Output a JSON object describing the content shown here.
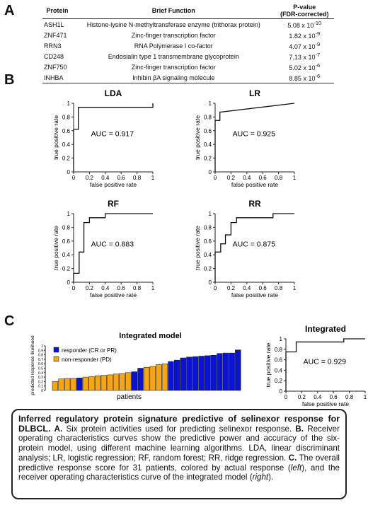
{
  "panels": {
    "a": "A",
    "b": "B",
    "c": "C"
  },
  "table": {
    "headers": {
      "protein": "Protein",
      "function": "Brief Function",
      "pvalue_line1": "P-value",
      "pvalue_line2": "(FDR-corrected)"
    },
    "rows": [
      {
        "protein": "ASH1L",
        "function": "Histone-lysine N-methyltransferase enzyme (trithorax protein)",
        "mant": "5.08 x 10",
        "exp": "-10"
      },
      {
        "protein": "ZNF471",
        "function": "Zinc-finger transcription factor",
        "mant": "1.82 x 10",
        "exp": "-9"
      },
      {
        "protein": "RRN3",
        "function": "RNA Polymerase I co-factor",
        "mant": "4.07 x 10",
        "exp": "-9"
      },
      {
        "protein": "CD248",
        "function": "Endosialin type 1 transmembrane glycoprotein",
        "mant": "7.13 x 10",
        "exp": "-7"
      },
      {
        "protein": "ZNF750",
        "function": "Zinc-finger transcription factor",
        "mant": "5.02 x 10",
        "exp": "-6"
      },
      {
        "protein": "INHBA",
        "function": "Inhibin βA signaling molecule",
        "mant": "8.85 x 10",
        "exp": "-6"
      }
    ]
  },
  "chart_data": [
    {
      "type": "line",
      "title": "LDA",
      "xlabel": "false positive rate",
      "ylabel": "true positive rate",
      "annotation": "AUC = 0.917",
      "xlim": [
        0,
        1
      ],
      "ylim": [
        0,
        1
      ],
      "xticks": [
        "0",
        "0.2",
        "0.4",
        "0.6",
        "0.8",
        "1"
      ],
      "yticks": [
        "0",
        "0.2",
        "0.4",
        "0.6",
        "0.8",
        "1"
      ],
      "x": [
        0,
        0,
        0.06,
        0.06,
        1,
        1
      ],
      "y": [
        0,
        0.62,
        0.62,
        0.94,
        0.94,
        1
      ]
    },
    {
      "type": "line",
      "title": "LR",
      "xlabel": "false positive rate",
      "ylabel": "true positive rate",
      "annotation": "AUC = 0.925",
      "xlim": [
        0,
        1
      ],
      "ylim": [
        0,
        1
      ],
      "xticks": [
        "0",
        "0.2",
        "0.4",
        "0.6",
        "0.8",
        "1"
      ],
      "yticks": [
        "0",
        "0.2",
        "0.4",
        "0.6",
        "0.8",
        "1"
      ],
      "x": [
        0,
        0,
        0.06,
        0.06,
        1
      ],
      "y": [
        0,
        0.75,
        0.75,
        0.87,
        1
      ]
    },
    {
      "type": "line",
      "title": "RF",
      "xlabel": "false positive rate",
      "ylabel": "true positive rate",
      "annotation": "AUC = 0.883",
      "xlim": [
        0,
        1
      ],
      "ylim": [
        0,
        1
      ],
      "xticks": [
        "0",
        "0.2",
        "0.4",
        "0.6",
        "0.8",
        "1"
      ],
      "yticks": [
        "0",
        "0.2",
        "0.4",
        "0.6",
        "0.8",
        "1"
      ],
      "x": [
        0,
        0,
        0.07,
        0.07,
        0.13,
        0.13,
        0.2,
        0.2,
        0.4,
        0.4,
        1,
        1
      ],
      "y": [
        0,
        0.13,
        0.13,
        0.44,
        0.44,
        0.87,
        0.87,
        0.94,
        0.94,
        1,
        1,
        1
      ]
    },
    {
      "type": "line",
      "title": "RR",
      "xlabel": "false positive rate",
      "ylabel": "true positive rate",
      "annotation": "AUC = 0.875",
      "xlim": [
        0,
        1
      ],
      "ylim": [
        0,
        1
      ],
      "xticks": [
        "0",
        "0.2",
        "0.4",
        "0.6",
        "0.8",
        "1"
      ],
      "yticks": [
        "0",
        "0.2",
        "0.4",
        "0.6",
        "0.8",
        "1"
      ],
      "x": [
        0,
        0,
        0.07,
        0.07,
        0.13,
        0.13,
        0.2,
        0.2,
        0.27,
        0.27,
        0.73,
        0.73,
        1,
        1
      ],
      "y": [
        0,
        0.44,
        0.44,
        0.56,
        0.56,
        0.69,
        0.69,
        0.87,
        0.87,
        0.94,
        0.94,
        1,
        1,
        1
      ]
    },
    {
      "type": "bar",
      "title": "Integrated model",
      "xlabel": "patients",
      "ylabel": "predicted response likelihood",
      "ylim": [
        0,
        1
      ],
      "yticks": [
        "0",
        "0.1",
        "0.2",
        "0.3",
        "0.4",
        "0.5",
        "0.6",
        "0.7",
        "0.8",
        "0.9",
        "1"
      ],
      "legend_position": "top-left",
      "series": [
        {
          "name": "responder (CR or PR)",
          "color": "#0a12d6"
        },
        {
          "name": "non-responder (PD)",
          "color": "#f5a614"
        }
      ],
      "values": [
        0.2,
        0.26,
        0.27,
        0.27,
        0.28,
        0.3,
        0.31,
        0.33,
        0.34,
        0.35,
        0.37,
        0.38,
        0.4,
        0.42,
        0.5,
        0.52,
        0.54,
        0.58,
        0.6,
        0.65,
        0.68,
        0.73,
        0.75,
        0.76,
        0.77,
        0.78,
        0.79,
        0.83,
        0.84,
        0.84,
        0.91
      ],
      "classes": [
        "non-responder (PD)",
        "non-responder (PD)",
        "non-responder (PD)",
        "non-responder (PD)",
        "responder (CR or PR)",
        "non-responder (PD)",
        "non-responder (PD)",
        "non-responder (PD)",
        "non-responder (PD)",
        "non-responder (PD)",
        "non-responder (PD)",
        "non-responder (PD)",
        "non-responder (PD)",
        "responder (CR or PR)",
        "responder (CR or PR)",
        "non-responder (PD)",
        "non-responder (PD)",
        "non-responder (PD)",
        "non-responder (PD)",
        "responder (CR or PR)",
        "responder (CR or PR)",
        "responder (CR or PR)",
        "responder (CR or PR)",
        "responder (CR or PR)",
        "responder (CR or PR)",
        "responder (CR or PR)",
        "responder (CR or PR)",
        "responder (CR or PR)",
        "responder (CR or PR)",
        "responder (CR or PR)",
        "responder (CR or PR)"
      ]
    },
    {
      "type": "line",
      "title": "Integrated",
      "xlabel": "false positive rate",
      "ylabel": "true positive rate",
      "annotation": "AUC = 0.929",
      "xlim": [
        0,
        1
      ],
      "ylim": [
        0,
        1
      ],
      "xticks": [
        "0",
        "0.2",
        "0.4",
        "0.6",
        "0.8",
        "1"
      ],
      "yticks": [
        "0",
        "0.2",
        "0.4",
        "0.6",
        "0.8",
        "1"
      ],
      "x": [
        0,
        0,
        0.13,
        0.13,
        0.73,
        0.73,
        1,
        1
      ],
      "y": [
        0,
        0.75,
        0.75,
        0.94,
        0.94,
        1,
        1,
        1
      ]
    }
  ],
  "caption": {
    "title": "Inferred regulatory protein signature predictive of selinexor response for DLBCL.",
    "a_label": "A.",
    "a_text": "Six protein activities used for predicting selinexor response.",
    "b_label": "B.",
    "b_text": "Receiver operating characteristics curves show the predictive power and accuracy of the six-protein model, using different machine learning algorithms. LDA, linear discriminant analysis; LR, logistic regression; RF, random forest; RR, ridge regression.",
    "c_label": "C.",
    "c_text1": "The overall predictive response score for 31 patients, colored by actual response (",
    "left_word": "left",
    "c_text2": "), and the receiver operating characteristics curve of the integrated model (",
    "right_word": "right",
    "c_text3": ")."
  }
}
